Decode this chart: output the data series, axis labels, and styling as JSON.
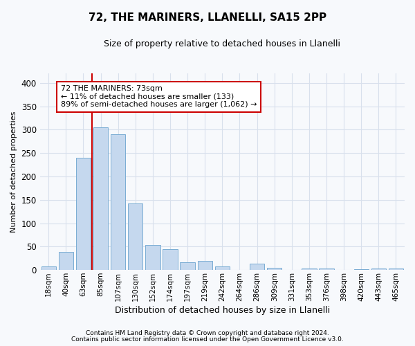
{
  "title": "72, THE MARINERS, LLANELLI, SA15 2PP",
  "subtitle": "Size of property relative to detached houses in Llanelli",
  "xlabel": "Distribution of detached houses by size in Llanelli",
  "ylabel": "Number of detached properties",
  "categories": [
    "18sqm",
    "40sqm",
    "63sqm",
    "85sqm",
    "107sqm",
    "130sqm",
    "152sqm",
    "174sqm",
    "197sqm",
    "219sqm",
    "242sqm",
    "264sqm",
    "286sqm",
    "309sqm",
    "331sqm",
    "353sqm",
    "376sqm",
    "398sqm",
    "420sqm",
    "443sqm",
    "465sqm"
  ],
  "values": [
    7,
    38,
    240,
    305,
    290,
    142,
    54,
    45,
    17,
    19,
    8,
    0,
    13,
    5,
    0,
    3,
    3,
    0,
    2,
    3,
    3
  ],
  "bar_color": "#c5d8ee",
  "bar_edge_color": "#7aadd4",
  "vline_position": 2.5,
  "vline_color": "#cc0000",
  "annotation_text": "72 THE MARINERS: 73sqm\n← 11% of detached houses are smaller (133)\n89% of semi-detached houses are larger (1,062) →",
  "annotation_box_facecolor": "#ffffff",
  "annotation_box_edgecolor": "#cc0000",
  "ylim": [
    0,
    420
  ],
  "yticks": [
    0,
    50,
    100,
    150,
    200,
    250,
    300,
    350,
    400
  ],
  "footer_line1": "Contains HM Land Registry data © Crown copyright and database right 2024.",
  "footer_line2": "Contains public sector information licensed under the Open Government Licence v3.0.",
  "bg_color": "#f7f9fc",
  "plot_bg_color": "#f7f9fc",
  "grid_color": "#d8e0ec"
}
